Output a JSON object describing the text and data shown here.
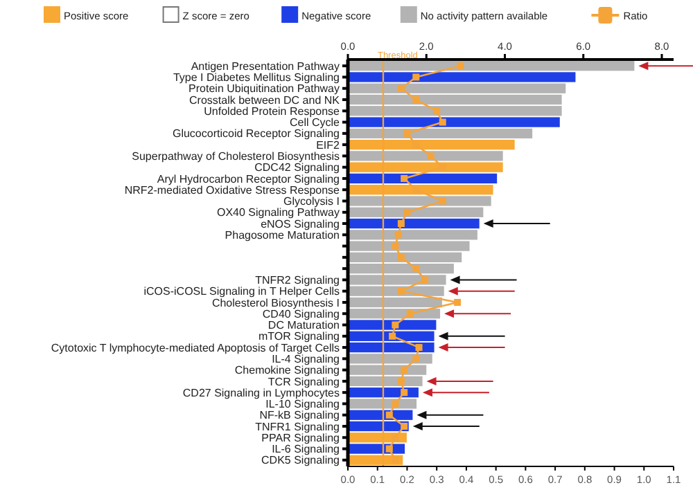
{
  "chart_data": {
    "type": "bar",
    "orientation": "horizontal",
    "stacked": true,
    "legend": "top",
    "grid": false,
    "categories": [
      "Antigen Presentation Pathway",
      "Type I Diabetes Mellitus Signaling",
      "Protein Ubiquitination Pathway",
      "Crosstalk between DC and NK",
      "Unfolded Protein Response",
      "Cell Cycle",
      "Glucocorticoid Receptor Signaling",
      "EIF2",
      "Superpathway of Cholesterol Biosynthesis",
      "CDC42 Signaling",
      "Aryl Hydrocarbon Receptor Signaling",
      "NRF2-mediated Oxidative Stress Response",
      "Glycolysis I",
      "OX40 Signaling Pathway",
      "eNOS Signaling",
      "Phagosome Maturation",
      null,
      null,
      null,
      "TNFR2 Signaling",
      "iCOS-iCOSL Signaling in T Helper Cells",
      "Cholesterol Biosynthesis I",
      "CD40 Signaling",
      "DC Maturation",
      "mTOR Signaling",
      "Cytotoxic T lymphocyte-mediated Apoptosis of Target Cells",
      "IL-4 Signaling",
      "Chemokine Signaling",
      "TCR Signaling",
      "CD27 Signaling in Lymphocytes",
      "IL-10 Signaling",
      "NF-kB Signaling",
      "TNFR1 Signaling",
      "PPAR Signaling",
      "IL-6 Signaling",
      "CDK5 Signaling"
    ],
    "xlim": [
      0,
      8.3
    ],
    "xticks": [
      {
        "value": 0,
        "label": "0.0"
      },
      {
        "value": 2,
        "label": "2.0"
      },
      {
        "value": 4,
        "label": "4.0"
      },
      {
        "value": 6,
        "label": "6.0"
      },
      {
        "value": 8,
        "label": "8.0"
      }
    ],
    "x2lim": [
      0,
      1.1
    ],
    "x2ticks": [
      {
        "value": 0,
        "label": "0.0"
      },
      0.1,
      0.2,
      0.3,
      0.4,
      0.5,
      0.6,
      0.7,
      0.8,
      0.9,
      {
        "value": 1,
        "label": "1.0"
      },
      1.1
    ],
    "series": [
      {
        "name": "Positive score",
        "color": "#f7a934",
        "values": [
          null,
          null,
          null,
          null,
          null,
          null,
          null,
          4.25,
          null,
          3.95,
          null,
          3.7,
          null,
          null,
          null,
          null,
          null,
          null,
          null,
          null,
          null,
          null,
          null,
          null,
          null,
          null,
          null,
          null,
          null,
          null,
          null,
          null,
          null,
          1.5,
          null,
          1.4
        ]
      },
      {
        "name": "Z score = zero",
        "color": "#ffffff",
        "values": [
          null,
          null,
          null,
          null,
          null,
          null,
          null,
          null,
          null,
          null,
          null,
          null,
          null,
          null,
          null,
          null,
          null,
          null,
          null,
          null,
          null,
          null,
          null,
          null,
          null,
          null,
          null,
          null,
          null,
          null,
          null,
          null,
          null,
          null,
          null,
          null
        ]
      },
      {
        "name": "Negative score",
        "color": "#1f3fe6",
        "values": [
          null,
          5.8,
          null,
          null,
          null,
          5.4,
          null,
          null,
          null,
          null,
          3.8,
          null,
          null,
          null,
          3.35,
          null,
          null,
          null,
          null,
          null,
          null,
          null,
          null,
          2.25,
          2.2,
          2.2,
          null,
          null,
          null,
          1.8,
          null,
          1.65,
          1.55,
          null,
          1.45,
          null
        ]
      },
      {
        "name": "No activity pattern available",
        "color": "#b3b3b3",
        "values": [
          7.3,
          null,
          5.55,
          5.45,
          5.45,
          null,
          4.7,
          null,
          3.95,
          null,
          null,
          null,
          3.65,
          3.45,
          null,
          3.3,
          3.1,
          2.9,
          2.7,
          2.5,
          2.45,
          2.4,
          2.35,
          null,
          null,
          null,
          2.15,
          2.0,
          1.9,
          null,
          1.75,
          null,
          null,
          null,
          null,
          null
        ]
      },
      {
        "name": "Ratio",
        "type": "line",
        "color": "#f5a43a",
        "marker": "square",
        "axis": "x2",
        "values": [
          0.38,
          0.23,
          0.18,
          0.23,
          0.3,
          0.32,
          0.2,
          0.23,
          0.28,
          0.32,
          0.19,
          0.23,
          0.32,
          0.2,
          0.18,
          0.17,
          0.16,
          0.18,
          0.23,
          0.26,
          0.18,
          0.37,
          0.21,
          0.16,
          0.15,
          0.24,
          0.23,
          0.19,
          0.18,
          0.19,
          0.16,
          0.14,
          0.19,
          0.16,
          0.14,
          0.16
        ]
      }
    ],
    "ref_lines": [
      {
        "axis": "x",
        "value": 0.9,
        "label": "Threshold",
        "color": "#f5a43a"
      }
    ]
  }
}
